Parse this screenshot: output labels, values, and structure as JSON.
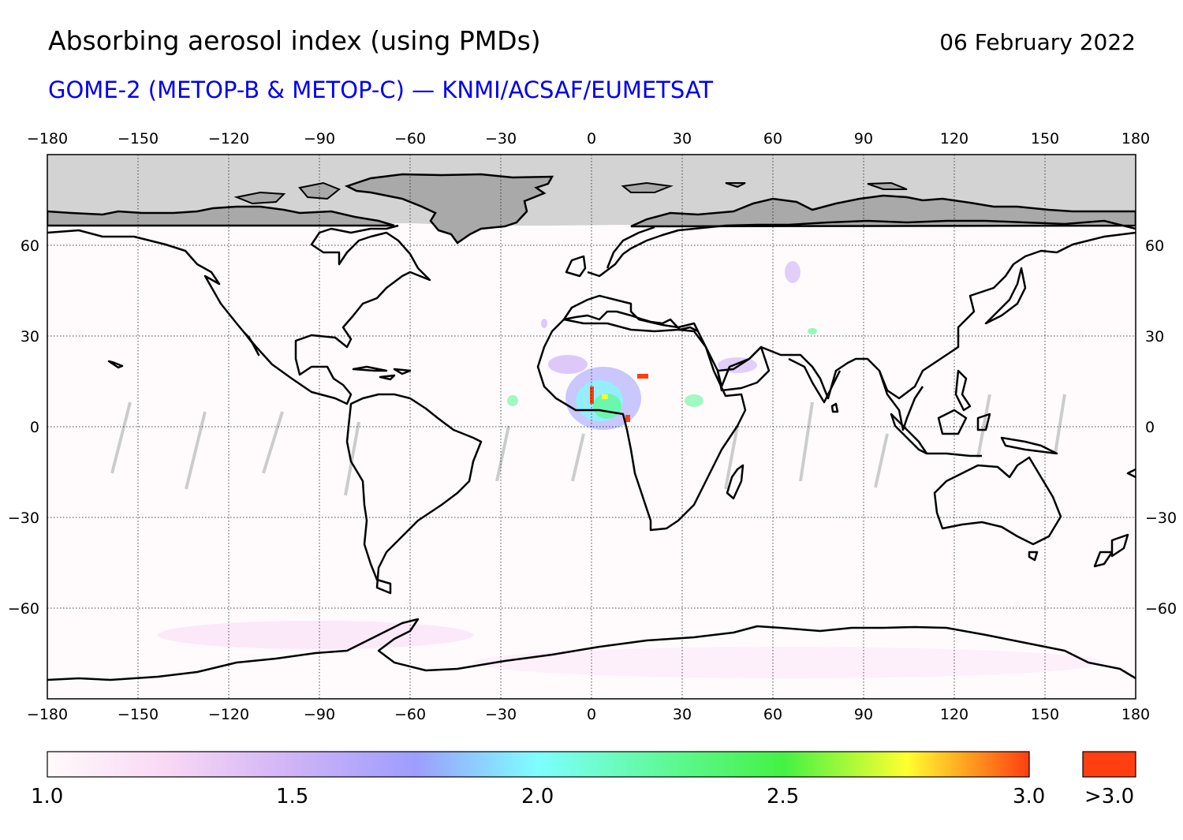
{
  "header": {
    "title": "Absorbing aerosol index (using PMDs)",
    "date": "06 February 2022",
    "subtitle": "GOME-2 (METOP-B & METOP-C) — KNMI/ACSAF/EUMETSAT"
  },
  "map": {
    "lon_ticks": [
      "−180",
      "−150",
      "−120",
      "−90",
      "−60",
      "−30",
      "0",
      "30",
      "60",
      "90",
      "120",
      "150",
      "180"
    ],
    "lat_ticks": [
      "60",
      "30",
      "0",
      "−30",
      "−60"
    ],
    "lon_range": [
      -180,
      180
    ],
    "lat_range": [
      -90,
      90
    ],
    "polar_night_limit_lat": 66,
    "grid": true,
    "colors": {
      "no_data_polar": "#d3d3d3",
      "land_in_polar_mask": "#a9a9a9",
      "coast": "#000000"
    }
  },
  "colorbar": {
    "min_label": "1.0",
    "labels": [
      "1.0",
      "1.5",
      "2.0",
      "2.5",
      "3.0"
    ],
    "over_label": ">3.0",
    "stops": [
      "#fffafa",
      "#f8d7f5",
      "#cfb3f6",
      "#9d9dff",
      "#7dffff",
      "#60f99b",
      "#44f244",
      "#ffff30",
      "#ff3f10"
    ],
    "over_color": "#ff3f10"
  }
}
